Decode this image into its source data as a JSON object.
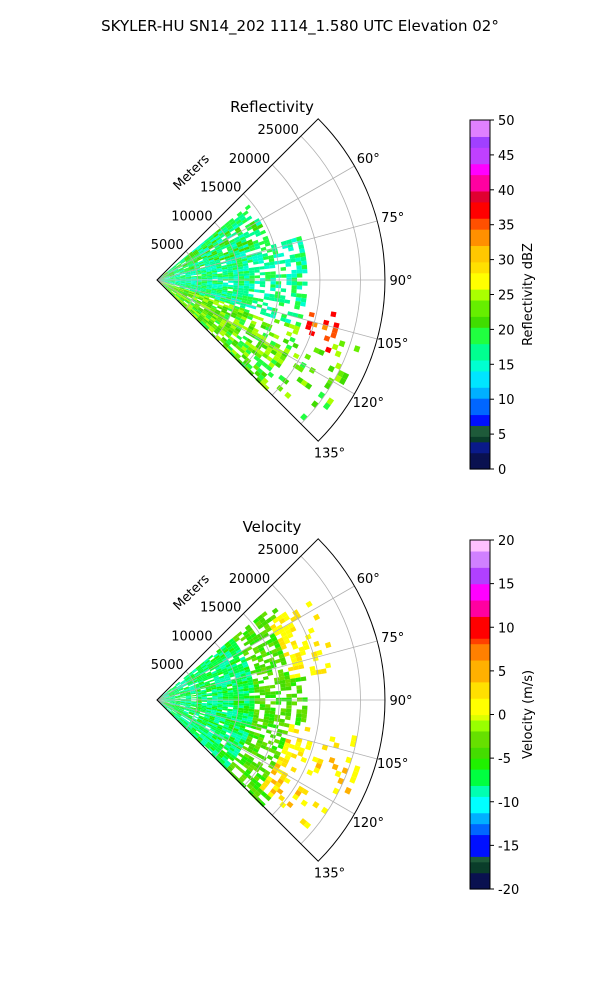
{
  "figure_title": "SKYLER-HU  SN14_202  1114_1.580 UTC Elevation 02°",
  "chart_data": [
    {
      "type": "heatmap",
      "subtype": "polar-sector (radar PPI)",
      "title": "Reflectivity",
      "radial_label": "Meters",
      "radial_ticks": [
        "5000",
        "10000",
        "15000",
        "20000",
        "25000"
      ],
      "radial_tick_values": [
        5000,
        10000,
        15000,
        20000,
        25000
      ],
      "rlim": [
        0,
        28000
      ],
      "theta_range_deg": [
        45,
        135
      ],
      "theta_ticks": [
        "60°",
        "75°",
        "90°",
        "105°",
        "120°",
        "135°"
      ],
      "theta_tick_values": [
        60,
        75,
        90,
        105,
        120,
        135
      ],
      "grid": true,
      "colorbar": {
        "label": "Reflectivity dBZ",
        "ticks": [
          "0",
          "5",
          "10",
          "15",
          "20",
          "25",
          "30",
          "35",
          "40",
          "45",
          "50"
        ],
        "range": [
          0,
          50
        ]
      },
      "field_summary": [
        {
          "theta_range": [
            50,
            72
          ],
          "r_range": [
            0,
            14000
          ],
          "value_range": [
            15,
            22
          ]
        },
        {
          "theta_range": [
            72,
            108
          ],
          "r_range": [
            0,
            18000
          ],
          "value_range": [
            14,
            20
          ]
        },
        {
          "theta_range": [
            108,
            135
          ],
          "r_range": [
            0,
            26000
          ],
          "value_range": [
            18,
            26
          ]
        },
        {
          "theta_range": [
            100,
            112
          ],
          "r_range": [
            19000,
            23000
          ],
          "value_range": [
            33,
            38
          ]
        }
      ]
    },
    {
      "type": "heatmap",
      "subtype": "polar-sector (radar PPI)",
      "title": "Velocity",
      "radial_label": "Meters",
      "radial_ticks": [
        "5000",
        "10000",
        "15000",
        "20000",
        "25000"
      ],
      "radial_tick_values": [
        5000,
        10000,
        15000,
        20000,
        25000
      ],
      "rlim": [
        0,
        28000
      ],
      "theta_range_deg": [
        45,
        135
      ],
      "theta_ticks": [
        "60°",
        "75°",
        "90°",
        "105°",
        "120°",
        "135°"
      ],
      "theta_tick_values": [
        60,
        75,
        90,
        105,
        120,
        135
      ],
      "grid": true,
      "colorbar": {
        "label": "Velocity (m/s)",
        "ticks": [
          "-20",
          "-15",
          "-10",
          "-5",
          "0",
          "5",
          "10",
          "15",
          "20"
        ],
        "range": [
          -20,
          20
        ]
      },
      "field_summary": [
        {
          "theta_range": [
            50,
            135
          ],
          "r_range": [
            0,
            12000
          ],
          "value_range": [
            -9,
            -6
          ]
        },
        {
          "theta_range": [
            50,
            135
          ],
          "r_range": [
            12000,
            18000
          ],
          "value_range": [
            -6,
            -2
          ]
        },
        {
          "theta_range": [
            55,
            80
          ],
          "r_range": [
            16000,
            22000
          ],
          "value_range": [
            0,
            3
          ]
        },
        {
          "theta_range": [
            100,
            130
          ],
          "r_range": [
            16000,
            26000
          ],
          "value_range": [
            0,
            5
          ]
        }
      ]
    }
  ]
}
